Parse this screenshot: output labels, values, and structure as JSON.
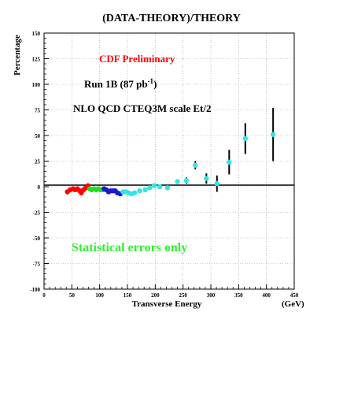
{
  "chart_data": {
    "type": "scatter",
    "title": "(DATA-THEORY)/THEORY",
    "ylabel": "Percentage",
    "xlabel": "Transverse Energy",
    "xunit": "(GeV)",
    "xlim": [
      0,
      450
    ],
    "ylim": [
      -100,
      150
    ],
    "x_ticks": [
      0,
      50,
      100,
      150,
      200,
      250,
      300,
      350,
      400,
      450
    ],
    "y_ticks": [
      -100,
      -75,
      -50,
      -25,
      0,
      25,
      50,
      75,
      100,
      125,
      150
    ],
    "grid": true,
    "zero_line": true,
    "annotations": {
      "preliminary": {
        "text": "CDF Preliminary",
        "color": "#ff0000"
      },
      "run": {
        "text_main": "Run 1B (87 pb",
        "text_sup": "-1",
        "text_end": ")",
        "color": "#000000"
      },
      "theory": {
        "text": "NLO QCD CTEQ3M  scale Et/2",
        "color": "#000000"
      },
      "errors": {
        "text": "Statistical errors  only",
        "color": "#33ee33"
      }
    },
    "series": [
      {
        "color": "#ff0000",
        "points": [
          {
            "x": 42,
            "y": -5
          },
          {
            "x": 47,
            "y": -3
          },
          {
            "x": 52,
            "y": -2
          },
          {
            "x": 56,
            "y": -3
          },
          {
            "x": 60,
            "y": -2
          },
          {
            "x": 64,
            "y": -4
          },
          {
            "x": 67,
            "y": -6
          },
          {
            "x": 71,
            "y": -3
          },
          {
            "x": 75,
            "y": -1
          },
          {
            "x": 79,
            "y": 1
          }
        ]
      },
      {
        "color": "#22dd22",
        "points": [
          {
            "x": 82,
            "y": -2
          },
          {
            "x": 86,
            "y": -3
          },
          {
            "x": 90,
            "y": -2
          },
          {
            "x": 94,
            "y": -3
          },
          {
            "x": 98,
            "y": -2
          },
          {
            "x": 102,
            "y": -3
          },
          {
            "x": 106,
            "y": -3
          }
        ]
      },
      {
        "color": "#1a1acc",
        "points": [
          {
            "x": 108,
            "y": -2
          },
          {
            "x": 112,
            "y": -3
          },
          {
            "x": 116,
            "y": -5
          },
          {
            "x": 120,
            "y": -4
          },
          {
            "x": 124,
            "y": -4
          },
          {
            "x": 128,
            "y": -4
          },
          {
            "x": 132,
            "y": -6
          },
          {
            "x": 137,
            "y": -7
          }
        ]
      },
      {
        "color": "#33e5e5",
        "points": [
          {
            "x": 142,
            "y": -5
          },
          {
            "x": 147,
            "y": -5
          },
          {
            "x": 152,
            "y": -6
          },
          {
            "x": 157,
            "y": -7
          },
          {
            "x": 163,
            "y": -6
          },
          {
            "x": 172,
            "y": -4
          },
          {
            "x": 182,
            "y": -3
          },
          {
            "x": 190,
            "y": -1
          },
          {
            "x": 198,
            "y": 1
          },
          {
            "x": 208,
            "y": 0
          },
          {
            "x": 222,
            "y": -1
          },
          {
            "x": 240,
            "y": 5,
            "err": 2
          },
          {
            "x": 256,
            "y": 6,
            "err": 3
          },
          {
            "x": 272,
            "y": 21,
            "err": 4
          },
          {
            "x": 292,
            "y": 8,
            "err": 5
          },
          {
            "x": 311,
            "y": 3,
            "err": 8
          },
          {
            "x": 333,
            "y": 24,
            "err": 12
          },
          {
            "x": 362,
            "y": 47,
            "err": 15
          },
          {
            "x": 412,
            "y": 51,
            "err": 26
          }
        ]
      }
    ]
  }
}
